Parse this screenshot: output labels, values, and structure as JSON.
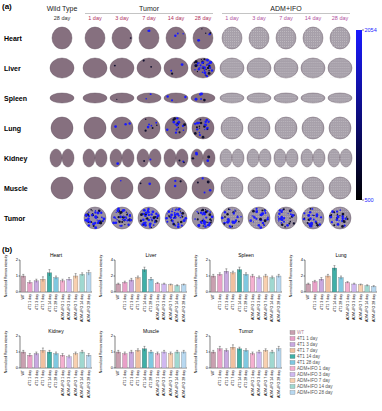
{
  "panel_a": {
    "label": "(a)",
    "groups": [
      {
        "name": "Wild Type",
        "days": [
          "28 day"
        ]
      },
      {
        "name": "Tumor",
        "days": [
          "1 day",
          "3 day",
          "7 day",
          "14 day",
          "28 day"
        ]
      },
      {
        "name": "ADM+IFO",
        "days": [
          "1 day",
          "3 day",
          "7 day",
          "14 day",
          "28 day"
        ]
      }
    ],
    "rows": [
      "Heart",
      "Liver",
      "Spleen",
      "Lung",
      "Kidney",
      "Muscle",
      "Tumor"
    ],
    "colorbar": {
      "range": [
        500,
        2054
      ],
      "ticks": [
        2054,
        500
      ],
      "colors": [
        "#000000",
        "#1a1aff"
      ]
    }
  },
  "panel_b": {
    "label": "(b)"
  },
  "chart_data": [
    {
      "type": "bar",
      "title": "Heart",
      "y_label": "Normalized Raman intensity",
      "categories": [
        "WT",
        "4T1 1 day",
        "4T1 3 day",
        "4T1 7 day",
        "4T1 14 day",
        "4T1 28 day",
        "ADM+IFO 1 day",
        "ADM+IFO 3 day",
        "ADM+IFO 7 day",
        "ADM+IFO 14 day",
        "ADM+IFO 28 day"
      ],
      "values": [
        1.0,
        0.6,
        0.7,
        0.8,
        1.2,
        0.9,
        0.7,
        0.8,
        1.0,
        1.1,
        1.2
      ],
      "errors": [
        0.1,
        0.1,
        0.1,
        0.15,
        0.2,
        0.1,
        0.1,
        0.1,
        0.15,
        0.1,
        0.15
      ],
      "colors": [
        "#c9a0b0",
        "#e8a0c8",
        "#c8a8e0",
        "#f0c0a0",
        "#40b0a8",
        "#80c8e0",
        "#f4b0d0",
        "#d0b8f0",
        "#f8d0b0",
        "#a0d8d0",
        "#b8d8f0"
      ],
      "ylim": [
        0,
        2
      ],
      "yticks": [
        0,
        1,
        2
      ]
    },
    {
      "type": "bar",
      "title": "Liver",
      "y_label": "Normalized Raman intensity",
      "categories": [
        "WT",
        "4T1 1 day",
        "4T1 3 day",
        "4T1 7 day",
        "4T1 14 day",
        "4T1 28 day",
        "ADM+IFO 1 day",
        "ADM+IFO 3 day",
        "ADM+IFO 7 day",
        "ADM+IFO 14 day",
        "ADM+IFO 28 day"
      ],
      "values": [
        1.0,
        1.2,
        1.5,
        1.8,
        2.8,
        1.6,
        1.1,
        1.0,
        0.9,
        0.8,
        0.9
      ],
      "errors": [
        0.1,
        0.15,
        0.2,
        0.2,
        0.3,
        0.2,
        0.1,
        0.1,
        0.1,
        0.1,
        0.1
      ],
      "colors": [
        "#c9a0b0",
        "#e8a0c8",
        "#c8a8e0",
        "#f0c0a0",
        "#40b0a8",
        "#80c8e0",
        "#f4b0d0",
        "#d0b8f0",
        "#f8d0b0",
        "#a0d8d0",
        "#b8d8f0"
      ],
      "ylim": [
        0,
        4
      ],
      "yticks": [
        0,
        2,
        4
      ]
    },
    {
      "type": "bar",
      "title": "Spleen",
      "y_label": "Normalized Raman intensity",
      "categories": [
        "WT",
        "4T1 1 day",
        "4T1 3 day",
        "4T1 7 day",
        "4T1 14 day",
        "4T1 28 day",
        "ADM+IFO 1 day",
        "ADM+IFO 3 day",
        "ADM+IFO 7 day",
        "ADM+IFO 14 day",
        "ADM+IFO 28 day"
      ],
      "values": [
        1.0,
        1.1,
        1.3,
        1.2,
        1.4,
        1.1,
        1.0,
        0.9,
        1.0,
        0.9,
        1.0
      ],
      "errors": [
        0.1,
        0.1,
        0.15,
        0.1,
        0.15,
        0.1,
        0.1,
        0.1,
        0.1,
        0.1,
        0.1
      ],
      "colors": [
        "#c9a0b0",
        "#e8a0c8",
        "#c8a8e0",
        "#f0c0a0",
        "#40b0a8",
        "#80c8e0",
        "#f4b0d0",
        "#d0b8f0",
        "#f8d0b0",
        "#a0d8d0",
        "#b8d8f0"
      ],
      "ylim": [
        0,
        2
      ],
      "yticks": [
        0,
        1,
        2
      ]
    },
    {
      "type": "bar",
      "title": "Lung",
      "y_label": "Normalized Raman intensity",
      "categories": [
        "WT",
        "4T1 1 day",
        "4T1 3 day",
        "4T1 7 day",
        "4T1 14 day",
        "4T1 28 day",
        "ADM+IFO 1 day",
        "ADM+IFO 3 day",
        "ADM+IFO 7 day",
        "ADM+IFO 14 day",
        "ADM+IFO 28 day"
      ],
      "values": [
        1.0,
        1.3,
        1.6,
        2.0,
        3.0,
        1.8,
        1.2,
        1.0,
        0.9,
        0.8,
        0.7
      ],
      "errors": [
        0.1,
        0.15,
        0.2,
        0.2,
        0.3,
        0.2,
        0.1,
        0.1,
        0.1,
        0.1,
        0.1
      ],
      "colors": [
        "#c9a0b0",
        "#e8a0c8",
        "#c8a8e0",
        "#f0c0a0",
        "#40b0a8",
        "#80c8e0",
        "#f4b0d0",
        "#d0b8f0",
        "#f8d0b0",
        "#a0d8d0",
        "#b8d8f0"
      ],
      "ylim": [
        0,
        4
      ],
      "yticks": [
        0,
        2,
        4
      ]
    },
    {
      "type": "bar",
      "title": "Kidney",
      "y_label": "Normalized Raman intensity",
      "categories": [
        "WT",
        "4T1 1 day",
        "4T1 3 day",
        "4T1 7 day",
        "4T1 14 day",
        "4T1 28 day",
        "ADM+IFO 1 day",
        "ADM+IFO 3 day",
        "ADM+IFO 7 day",
        "ADM+IFO 14 day",
        "ADM+IFO 28 day"
      ],
      "values": [
        1.0,
        0.8,
        0.9,
        1.1,
        1.0,
        0.9,
        0.8,
        0.7,
        0.9,
        1.0,
        0.8
      ],
      "errors": [
        0.1,
        0.1,
        0.1,
        0.15,
        0.1,
        0.1,
        0.1,
        0.1,
        0.1,
        0.1,
        0.1
      ],
      "colors": [
        "#c9a0b0",
        "#e8a0c8",
        "#c8a8e0",
        "#f0c0a0",
        "#40b0a8",
        "#80c8e0",
        "#f4b0d0",
        "#d0b8f0",
        "#f8d0b0",
        "#a0d8d0",
        "#b8d8f0"
      ],
      "ylim": [
        0,
        2
      ],
      "yticks": [
        0,
        1,
        2
      ]
    },
    {
      "type": "bar",
      "title": "Muscle",
      "y_label": "Normalized Raman intensity",
      "categories": [
        "WT",
        "4T1 1 day",
        "4T1 3 day",
        "4T1 7 day",
        "4T1 14 day",
        "4T1 28 day",
        "ADM+IFO 1 day",
        "ADM+IFO 3 day",
        "ADM+IFO 7 day",
        "ADM+IFO 14 day",
        "ADM+IFO 28 day"
      ],
      "values": [
        1.0,
        0.9,
        1.0,
        1.1,
        1.2,
        1.0,
        0.9,
        1.0,
        0.9,
        1.0,
        1.0
      ],
      "errors": [
        0.1,
        0.1,
        0.1,
        0.1,
        0.15,
        0.1,
        0.1,
        0.1,
        0.1,
        0.1,
        0.1
      ],
      "colors": [
        "#c9a0b0",
        "#e8a0c8",
        "#c8a8e0",
        "#f0c0a0",
        "#40b0a8",
        "#80c8e0",
        "#f4b0d0",
        "#d0b8f0",
        "#f8d0b0",
        "#a0d8d0",
        "#b8d8f0"
      ],
      "ylim": [
        0,
        2
      ],
      "yticks": [
        0,
        1,
        2
      ]
    },
    {
      "type": "bar",
      "title": "Tumor",
      "y_label": "Normalized Raman intensity",
      "categories": [
        "WT",
        "4T1 1 day",
        "4T1 3 day",
        "4T1 7 day",
        "4T1 14 day",
        "4T1 28 day",
        "ADM+IFO 1 day",
        "ADM+IFO 3 day",
        "ADM+IFO 7 day",
        "ADM+IFO 14 day",
        "ADM+IFO 28 day"
      ],
      "values": [
        1.0,
        1.2,
        1.1,
        1.3,
        1.2,
        1.1,
        0.9,
        1.0,
        1.1,
        1.0,
        1.2
      ],
      "errors": [
        0.1,
        0.15,
        0.1,
        0.15,
        0.1,
        0.1,
        0.1,
        0.1,
        0.1,
        0.1,
        0.15
      ],
      "colors": [
        "#c9a0b0",
        "#e8a0c8",
        "#c8a8e0",
        "#f0c0a0",
        "#40b0a8",
        "#80c8e0",
        "#f4b0d0",
        "#d0b8f0",
        "#f8d0b0",
        "#a0d8d0",
        "#b8d8f0"
      ],
      "ylim": [
        0,
        2
      ],
      "yticks": [
        0,
        1,
        2
      ],
      "legend": "right"
    }
  ]
}
